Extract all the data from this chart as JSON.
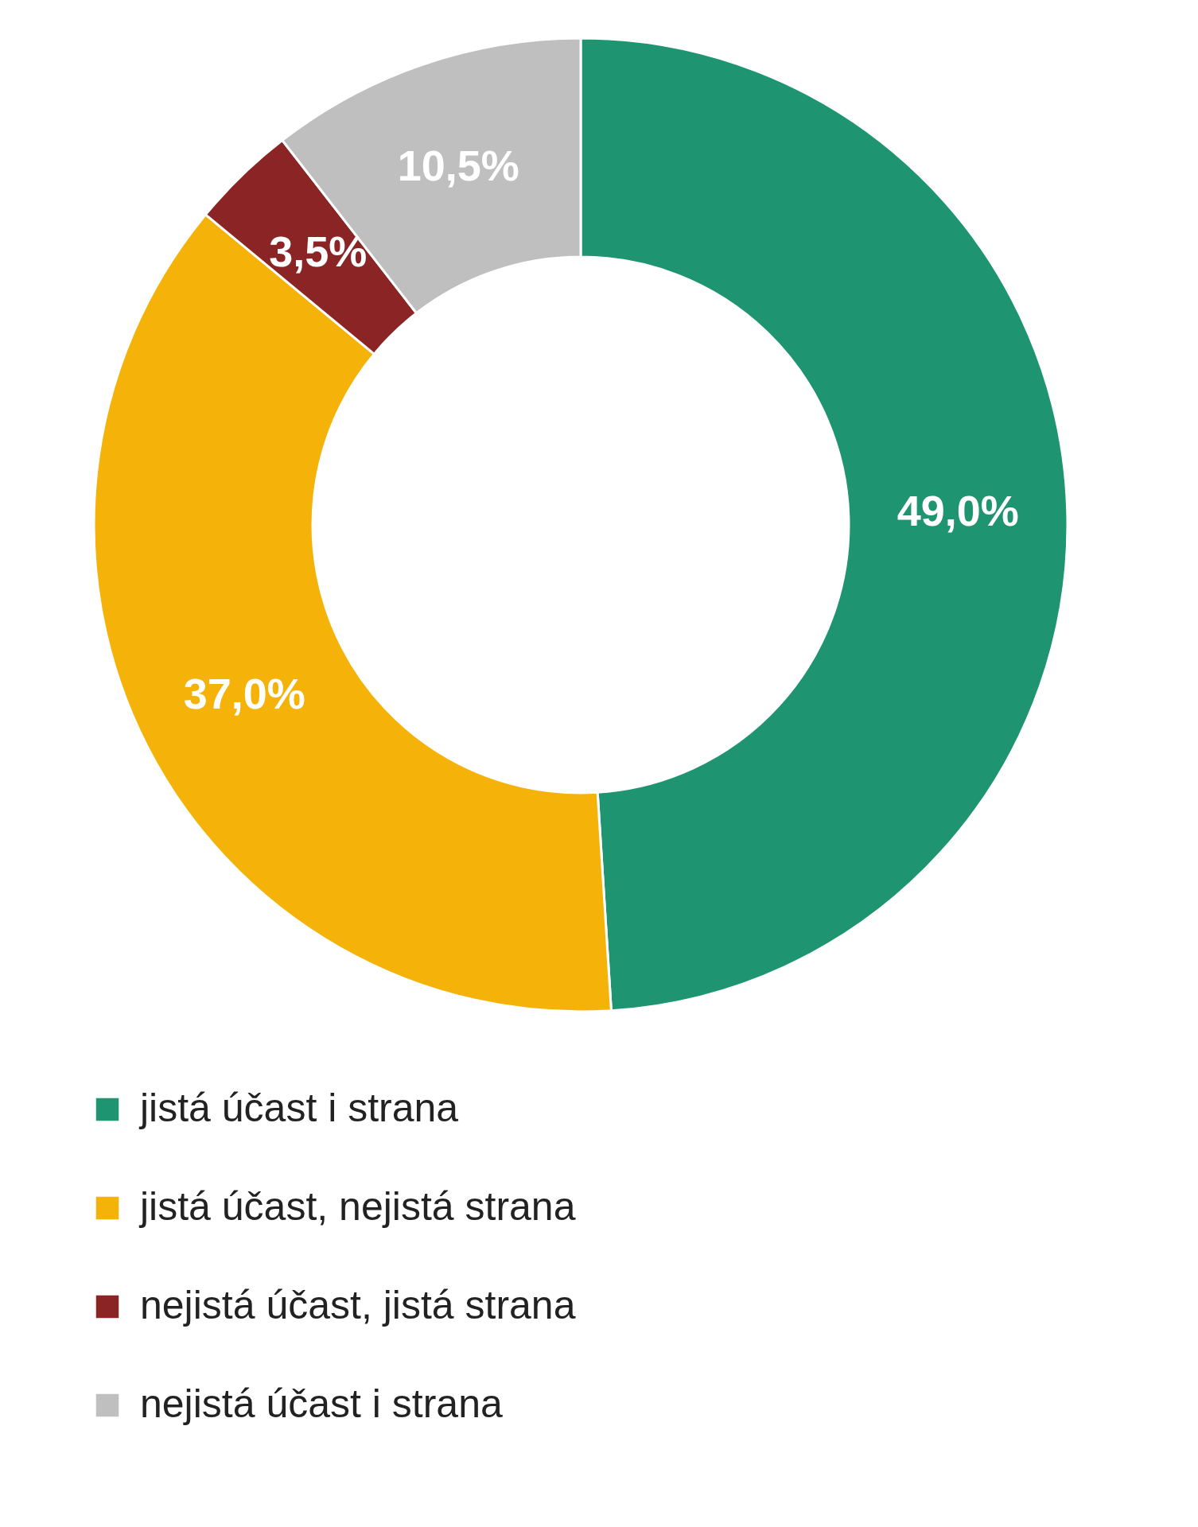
{
  "chart_data": {
    "type": "donut",
    "categories": [
      "jistá účast i strana",
      "jistá účast, nejistá strana",
      "nejistá účast, jistá strana",
      "nejistá účast i strana"
    ],
    "values": [
      49.0,
      37.0,
      3.5,
      10.5
    ],
    "colors": [
      "#1e9470",
      "#f5b30a",
      "#8b2525",
      "#bfbfbf"
    ],
    "value_labels": [
      "49,0%",
      "37,0%",
      "3,5%",
      "10,5%"
    ],
    "legend": "bottom"
  }
}
